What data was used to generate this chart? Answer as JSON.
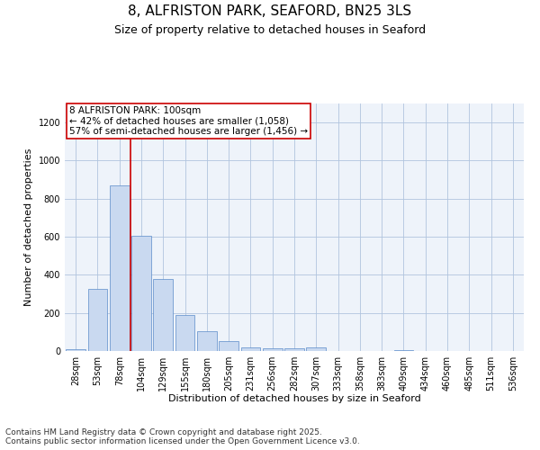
{
  "title": "8, ALFRISTON PARK, SEAFORD, BN25 3LS",
  "subtitle": "Size of property relative to detached houses in Seaford",
  "xlabel": "Distribution of detached houses by size in Seaford",
  "ylabel": "Number of detached properties",
  "categories": [
    "28sqm",
    "53sqm",
    "78sqm",
    "104sqm",
    "129sqm",
    "155sqm",
    "180sqm",
    "205sqm",
    "231sqm",
    "256sqm",
    "282sqm",
    "307sqm",
    "333sqm",
    "358sqm",
    "383sqm",
    "409sqm",
    "434sqm",
    "460sqm",
    "485sqm",
    "511sqm",
    "536sqm"
  ],
  "values": [
    10,
    325,
    870,
    605,
    380,
    190,
    105,
    50,
    20,
    15,
    13,
    20,
    0,
    0,
    0,
    5,
    0,
    0,
    0,
    0,
    0
  ],
  "bar_color": "#c9d9f0",
  "bar_edge_color": "#5b8bc9",
  "red_line_x": 2.5,
  "red_line_color": "#cc0000",
  "annotation_text": "8 ALFRISTON PARK: 100sqm\n← 42% of detached houses are smaller (1,058)\n57% of semi-detached houses are larger (1,456) →",
  "annotation_box_color": "#cc0000",
  "ylim": [
    0,
    1300
  ],
  "yticks": [
    0,
    200,
    400,
    600,
    800,
    1000,
    1200
  ],
  "grid_color": "#b0c4de",
  "bg_color": "#eef3fa",
  "footer1": "Contains HM Land Registry data © Crown copyright and database right 2025.",
  "footer2": "Contains public sector information licensed under the Open Government Licence v3.0.",
  "title_fontsize": 11,
  "subtitle_fontsize": 9,
  "annotation_fontsize": 7.5,
  "axis_label_fontsize": 8,
  "tick_fontsize": 7,
  "footer_fontsize": 6.5
}
